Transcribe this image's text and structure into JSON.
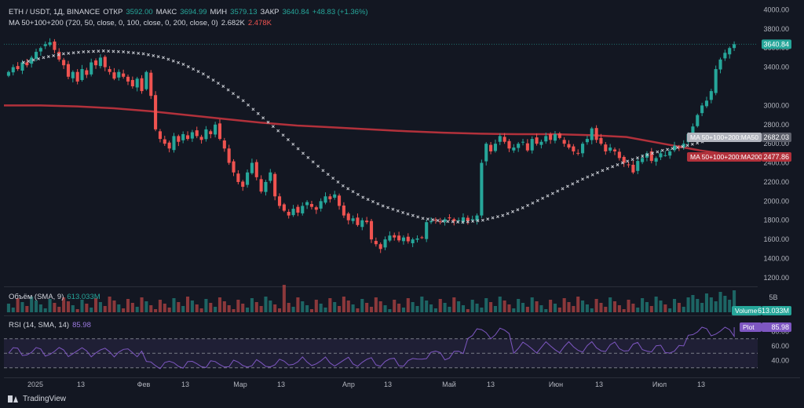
{
  "legend": {
    "symbol": "ETH / USDT, 1Д, BINANCE",
    "open_label": "ОТКР",
    "open": "3592.00",
    "high_label": "МАКС",
    "high": "3694.99",
    "low_label": "МИН",
    "low": "3579.13",
    "close_label": "ЗАКР",
    "close": "3640.84",
    "change": "+48.83 (+1.36%)",
    "ma_label": "MA 50+100+200 (720, 50, close, 0, 100, close, 0, 200, close, 0)",
    "ma_val1": "2.682K",
    "ma_val2": "2.478K",
    "vol_label": "Объём (SMA, 9)",
    "vol_val": "613.033M",
    "rsi_label": "RSI (14, SMA, 14)",
    "rsi_val": "85.98"
  },
  "price_badges": {
    "last": "3640.84",
    "ma50_name": "MA 50+100+200:MA50",
    "ma50_val": "2682.03",
    "ma200_name": "MA 50+100+200:MA200",
    "ma200_val": "2477.86",
    "volume_name": "Volume",
    "volume_val": "613.033M",
    "plot_name": "Plot",
    "plot_val": "85.98"
  },
  "footer": {
    "brand": "TradingView"
  },
  "colors": {
    "up": "#26a69a",
    "down": "#ef5350",
    "ma200": "#b2313b",
    "ma50": "#c8cbd2",
    "rsi": "#7e57c2",
    "background": "#131722"
  },
  "chart_data": {
    "type": "candlestick",
    "title": "ETH / USDT, 1Д, BINANCE",
    "x_ticks": [
      "2025",
      "13",
      "Фев",
      "13",
      "Мар",
      "13",
      "Апр",
      "13",
      "Май",
      "13",
      "Июн",
      "13",
      "Июл",
      "13"
    ],
    "price_axis_ticks": [
      4000,
      3800,
      3600,
      3400,
      3000,
      2800,
      2600,
      2400,
      2200,
      2000,
      1800,
      1600,
      1400,
      1200
    ],
    "price_range": [
      1150,
      4020
    ],
    "close_series": [
      3350,
      3400,
      3380,
      3450,
      3420,
      3500,
      3560,
      3600,
      3640,
      3660,
      3580,
      3480,
      3420,
      3300,
      3350,
      3250,
      3380,
      3320,
      3450,
      3420,
      3500,
      3400,
      3350,
      3280,
      3350,
      3300,
      3250,
      3200,
      3280,
      3150,
      3350,
      3100,
      2750,
      2650,
      2600,
      2550,
      2680,
      2620,
      2700,
      2650,
      2720,
      2680,
      2640,
      2750,
      2700,
      2800,
      2650,
      2550,
      2400,
      2300,
      2200,
      2150,
      2300,
      2400,
      2250,
      2100,
      2200,
      2300,
      2050,
      1950,
      1900,
      1850,
      1920,
      1880,
      1950,
      1990,
      1940,
      1910,
      2000,
      2050,
      2020,
      2070,
      1950,
      1850,
      1800,
      1820,
      1750,
      1800,
      1780,
      1600,
      1550,
      1500,
      1600,
      1640,
      1620,
      1590,
      1620,
      1580,
      1600,
      1610,
      1620,
      1780,
      1790,
      1800,
      1780,
      1810,
      1820,
      1790,
      1800,
      1830,
      1790,
      1810,
      1850,
      2400,
      2600,
      2520,
      2600,
      2680,
      2620,
      2550,
      2560,
      2600,
      2620,
      2530,
      2650,
      2600,
      2620,
      2680,
      2640,
      2700,
      2660,
      2600,
      2560,
      2520,
      2500,
      2600,
      2650,
      2760,
      2640,
      2600,
      2520,
      2560,
      2520,
      2450,
      2400,
      2380,
      2300,
      2420,
      2450,
      2500,
      2420,
      2450,
      2500,
      2480,
      2520,
      2580,
      2560,
      2600,
      2700,
      2780,
      2900,
      3000,
      3050,
      3150,
      3380,
      3480,
      3550,
      3600,
      3640
    ],
    "ma50": [
      3450,
      3500,
      3540,
      3560,
      3570,
      3560,
      3540,
      3500,
      3430,
      3330,
      3200,
      3050,
      2870,
      2690,
      2500,
      2320,
      2160,
      2040,
      1950,
      1880,
      1820,
      1790,
      1780,
      1800,
      1850,
      1930,
      2030,
      2130,
      2230,
      2320,
      2400,
      2470,
      2530,
      2570,
      2620,
      2682
    ],
    "ma200": [
      3000,
      3000,
      2990,
      2970,
      2940,
      2900,
      2860,
      2820,
      2790,
      2770,
      2750,
      2730,
      2715,
      2705,
      2700,
      2700,
      2690,
      2670,
      2600,
      2530,
      2478
    ],
    "volume_peak_label": "5B",
    "rsi_axis_ticks": [
      80,
      60,
      40
    ],
    "rsi_last": 85.98
  }
}
